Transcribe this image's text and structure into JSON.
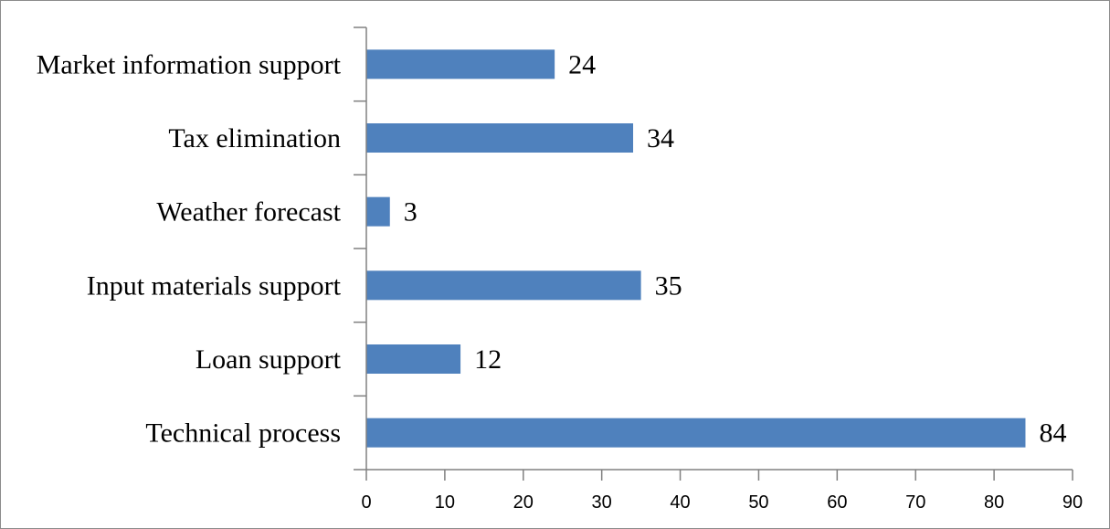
{
  "chart_data": {
    "type": "bar",
    "orientation": "horizontal",
    "categories": [
      "Market information support",
      "Tax elimination",
      "Weather forecast",
      "Input materials support",
      "Loan support",
      "Technical process"
    ],
    "values": [
      24,
      34,
      3,
      35,
      12,
      84
    ],
    "xlim": [
      0,
      90
    ],
    "x_ticks": [
      0,
      10,
      20,
      30,
      40,
      50,
      60,
      70,
      80,
      90
    ],
    "title": "",
    "xlabel": "",
    "ylabel": "",
    "grid": false,
    "legend": "none",
    "data_labels": true,
    "bar_color": "#4f81bd"
  }
}
